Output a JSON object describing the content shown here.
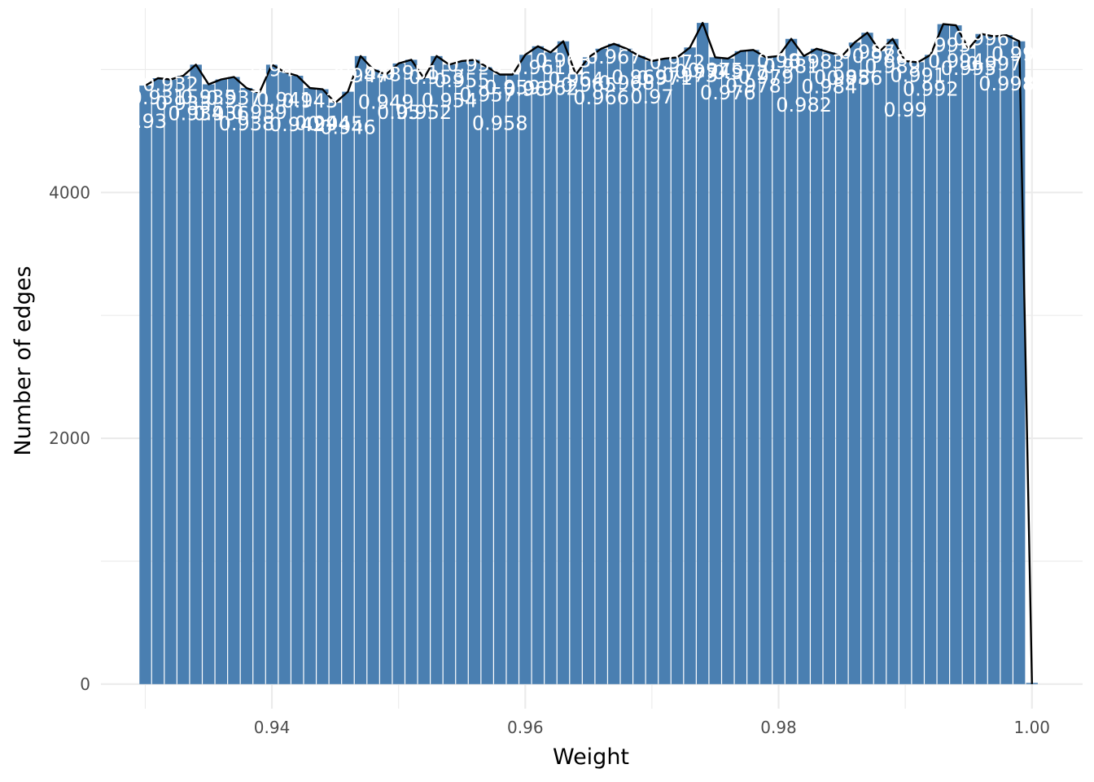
{
  "chart_data": {
    "type": "bar",
    "title": "",
    "xlabel": "Weight",
    "ylabel": "Number of edges",
    "xlim": [
      0.9265,
      1.004
    ],
    "ylim": [
      -200,
      5500
    ],
    "grid": true,
    "legend": "none",
    "x_ticks": [
      0.94,
      0.96,
      0.98,
      1.0
    ],
    "x_tick_labels": [
      "0.94",
      "0.96",
      "0.98",
      "1.00"
    ],
    "y_ticks": [
      0,
      2000,
      4000
    ],
    "y_tick_labels": [
      "0",
      "2000",
      "4000"
    ],
    "bin_width": 0.001,
    "x": [
      0.93,
      0.931,
      0.932,
      0.933,
      0.934,
      0.935,
      0.936,
      0.937,
      0.938,
      0.939,
      0.94,
      0.941,
      0.942,
      0.943,
      0.944,
      0.945,
      0.946,
      0.947,
      0.948,
      0.949,
      0.95,
      0.951,
      0.952,
      0.953,
      0.954,
      0.955,
      0.956,
      0.957,
      0.958,
      0.959,
      0.96,
      0.961,
      0.962,
      0.963,
      0.964,
      0.965,
      0.966,
      0.967,
      0.968,
      0.969,
      0.97,
      0.971,
      0.972,
      0.973,
      0.974,
      0.975,
      0.976,
      0.977,
      0.978,
      0.979,
      0.98,
      0.981,
      0.982,
      0.983,
      0.984,
      0.985,
      0.986,
      0.987,
      0.988,
      0.989,
      0.99,
      0.991,
      0.992,
      0.993,
      0.994,
      0.995,
      0.996,
      0.997,
      0.998,
      0.999,
      1.0
    ],
    "values": [
      4870,
      4930,
      4920,
      4950,
      5040,
      4880,
      4920,
      4940,
      4850,
      4810,
      5040,
      4980,
      4950,
      4850,
      4840,
      4730,
      4820,
      5110,
      5000,
      4960,
      5050,
      5080,
      4930,
      5110,
      5040,
      5070,
      5080,
      5020,
      4960,
      4960,
      5120,
      5190,
      5140,
      5230,
      4960,
      5100,
      5170,
      5210,
      5170,
      5110,
      5070,
      5090,
      5100,
      5180,
      5380,
      5100,
      5090,
      5150,
      5160,
      5100,
      5110,
      5250,
      5110,
      5170,
      5140,
      5110,
      5220,
      5300,
      5150,
      5250,
      5070,
      5060,
      5120,
      5370,
      5360,
      5170,
      5290,
      5270,
      5280,
      5230,
      0
    ],
    "series": [
      {
        "type": "bar",
        "color": "#4a7fb1"
      },
      {
        "type": "line",
        "color": "#000000"
      }
    ],
    "data_labels": [
      "0.93",
      "0.931",
      "0.932",
      "0.933",
      "0.934",
      "0.935",
      "0.936",
      "0.937",
      "0.938",
      "0.939",
      "0.94",
      "0.941",
      "0.942",
      "0.943",
      "0.944",
      "0.945",
      "0.946",
      "0.947",
      "0.948",
      "0.949",
      "0.95",
      "0.951",
      "0.952",
      "0.953",
      "0.954",
      "0.955",
      "0.956",
      "0.957",
      "0.958",
      "0.959",
      "0.96",
      "0.961",
      "0.962",
      "0.963",
      "0.964",
      "0.965",
      "0.966",
      "0.967",
      "0.968",
      "0.969",
      "0.97",
      "0.971",
      "0.972",
      "0.973",
      "0.974",
      "0.975",
      "0.976",
      "0.977",
      "0.978",
      "0.979",
      "0.98",
      "0.981",
      "0.982",
      "0.983",
      "0.984",
      "0.985",
      "0.986",
      "0.987",
      "0.988",
      "0.989",
      "0.99",
      "0.991",
      "0.992",
      "0.993",
      "0.994",
      "0.995",
      "0.996",
      "0.997",
      "0.998",
      "0.999",
      "1"
    ],
    "colors": {
      "bar": "#4a7fb1",
      "line": "#000000",
      "grid": "#ebebeb",
      "label": "#ffffff"
    }
  }
}
